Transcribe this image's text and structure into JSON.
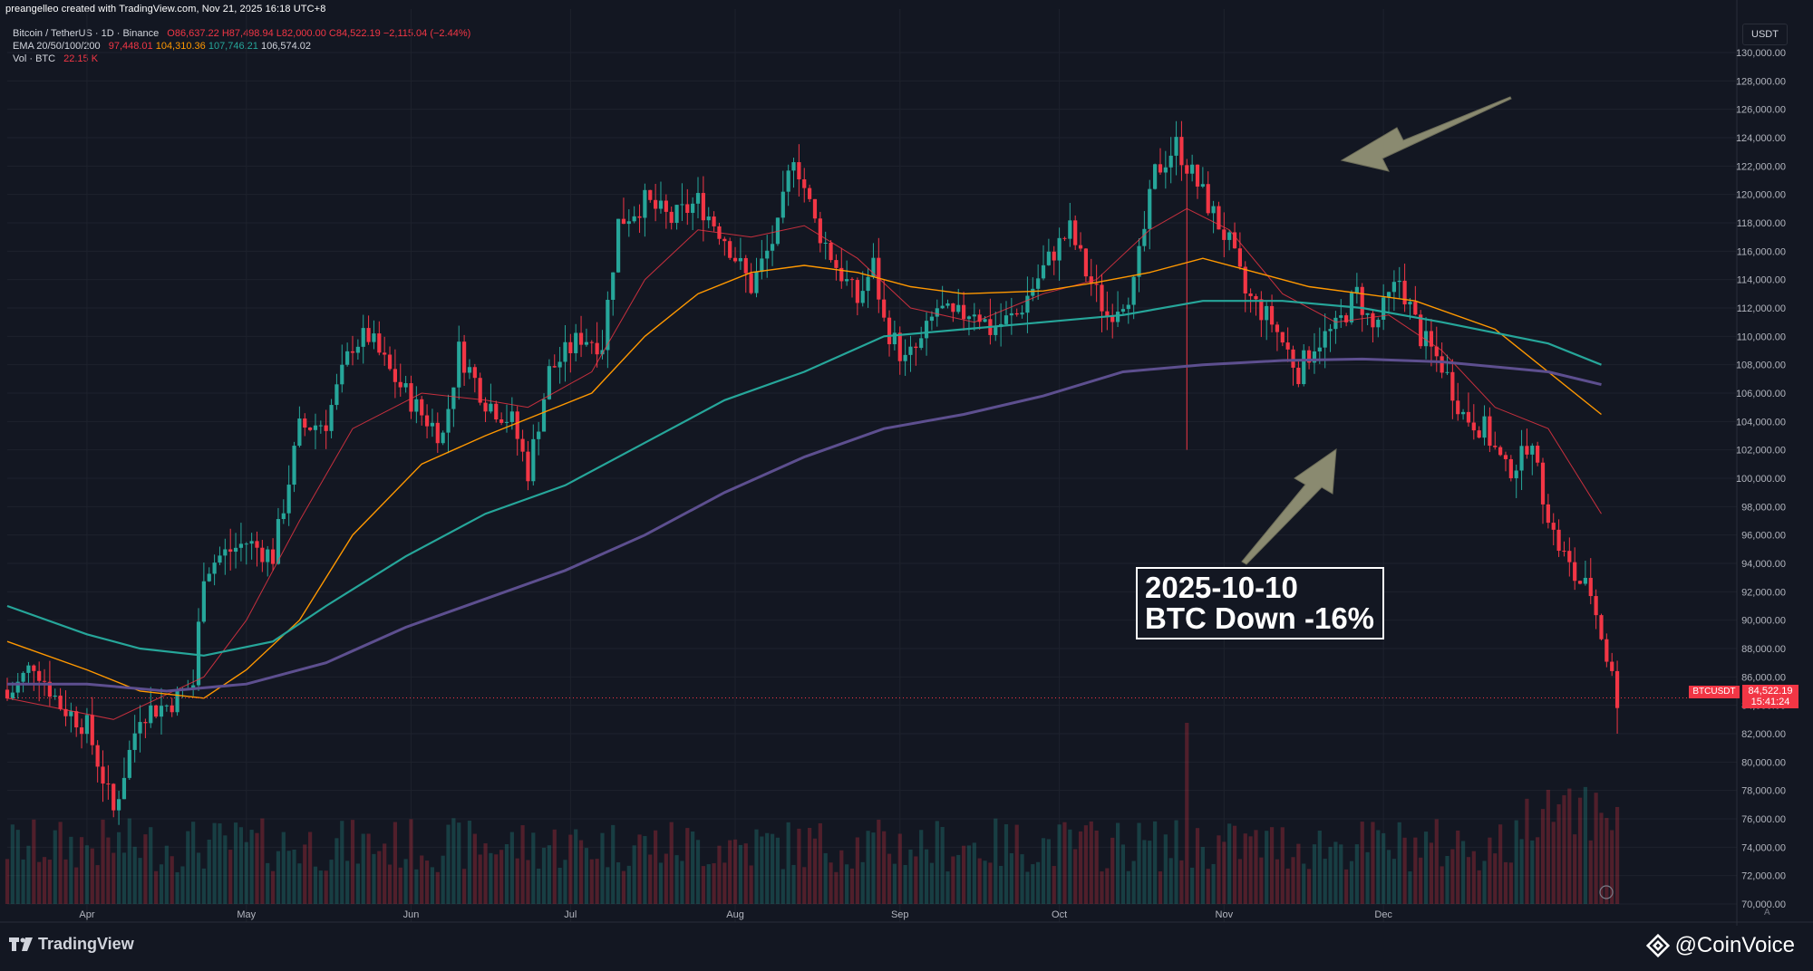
{
  "header": {
    "credit": "preangelleo created with TradingView.com, Nov 21, 2025 16:18 UTC+8",
    "symbol_label": "Bitcoin / TetherUS · 1D · Binance",
    "ohlc": {
      "o": "O86,637.22",
      "h": "H87,498.94",
      "l": "L82,000.00",
      "c": "C84,522.19",
      "chg": "−2,115.04 (−2.44%)"
    },
    "ema_label": "EMA 20/50/100/200",
    "ema_values": [
      "97,448.01",
      "104,310.36",
      "107,746.21",
      "106,574.02"
    ],
    "vol_label": "Vol · BTC",
    "vol_value": "22.15 K"
  },
  "currency_button": "USDT",
  "price_tag": {
    "symbol": "BTCUSDT",
    "price": "84,522.19",
    "countdown": "15:41:24"
  },
  "annotation": {
    "line1": "2025-10-10",
    "line2": "BTC Down -16%"
  },
  "footer": {
    "brand": "TradingView",
    "watermark": "@CoinVoice",
    "auto": "A"
  },
  "colors": {
    "up": "#26a69a",
    "down": "#f23645",
    "ema20": "#f23645",
    "ema50": "#ff9800",
    "ema100": "#26a69a",
    "ema200": "#5d4f8f",
    "arrow": "#8a8a70",
    "bg": "#131722"
  },
  "chart_data": {
    "type": "candlestick",
    "ylim": [
      69000,
      131000
    ],
    "yticks": [
      70000,
      72000,
      74000,
      76000,
      78000,
      80000,
      82000,
      84000,
      86000,
      88000,
      90000,
      92000,
      94000,
      96000,
      98000,
      100000,
      102000,
      104000,
      106000,
      108000,
      110000,
      112000,
      114000,
      116000,
      118000,
      120000,
      122000,
      124000,
      126000,
      128000,
      130000
    ],
    "xticks": [
      {
        "label": "Apr",
        "t": 15
      },
      {
        "label": "May",
        "t": 45
      },
      {
        "label": "Jun",
        "t": 76
      },
      {
        "label": "Jul",
        "t": 106
      },
      {
        "label": "Aug",
        "t": 137
      },
      {
        "label": "Sep",
        "t": 168
      },
      {
        "label": "Oct",
        "t": 198
      },
      {
        "label": "Nov",
        "t": 229
      },
      {
        "label": "Dec",
        "t": 259
      }
    ],
    "close_path": [
      [
        0,
        84500
      ],
      [
        5,
        87000
      ],
      [
        10,
        84000
      ],
      [
        15,
        82500
      ],
      [
        20,
        76500
      ],
      [
        25,
        83500
      ],
      [
        30,
        84000
      ],
      [
        35,
        85500
      ],
      [
        37,
        93500
      ],
      [
        40,
        94500
      ],
      [
        45,
        95500
      ],
      [
        50,
        94500
      ],
      [
        55,
        103500
      ],
      [
        60,
        104000
      ],
      [
        65,
        109500
      ],
      [
        68,
        110000
      ],
      [
        72,
        107500
      ],
      [
        78,
        104500
      ],
      [
        82,
        103000
      ],
      [
        85,
        109000
      ],
      [
        90,
        105500
      ],
      [
        95,
        104000
      ],
      [
        98,
        100500
      ],
      [
        102,
        107500
      ],
      [
        108,
        110000
      ],
      [
        112,
        109500
      ],
      [
        115,
        118000
      ],
      [
        120,
        119500
      ],
      [
        125,
        118200
      ],
      [
        130,
        119500
      ],
      [
        135,
        117000
      ],
      [
        140,
        113500
      ],
      [
        145,
        117500
      ],
      [
        148,
        123000
      ],
      [
        152,
        118000
      ],
      [
        156,
        115000
      ],
      [
        160,
        112500
      ],
      [
        163,
        115000
      ],
      [
        165,
        111000
      ],
      [
        169,
        108200
      ],
      [
        172,
        109500
      ],
      [
        175,
        112000
      ],
      [
        178,
        111200
      ],
      [
        182,
        112000
      ],
      [
        185,
        110500
      ],
      [
        190,
        111500
      ],
      [
        193,
        113500
      ],
      [
        197,
        116000
      ],
      [
        200,
        117500
      ],
      [
        203,
        114500
      ],
      [
        207,
        111500
      ],
      [
        212,
        113500
      ],
      [
        216,
        121500
      ],
      [
        220,
        123500
      ],
      [
        225,
        120000
      ],
      [
        230,
        116500
      ],
      [
        233,
        113000
      ],
      [
        238,
        111000
      ],
      [
        243,
        107500
      ],
      [
        246,
        109500
      ],
      [
        250,
        110500
      ],
      [
        254,
        113000
      ],
      [
        257,
        110500
      ],
      [
        262,
        114000
      ],
      [
        266,
        110000
      ],
      [
        270,
        108000
      ],
      [
        274,
        104500
      ],
      [
        278,
        103500
      ],
      [
        282,
        100500
      ],
      [
        287,
        102000
      ],
      [
        291,
        96000
      ],
      [
        295,
        93000
      ],
      [
        298,
        92000
      ],
      [
        301,
        87500
      ],
      [
        303,
        84500
      ]
    ],
    "ema_paths": [
      {
        "name": "EMA 20",
        "values": [
          [
            0,
            84500
          ],
          [
            20,
            83000
          ],
          [
            37,
            86000
          ],
          [
            45,
            90000
          ],
          [
            55,
            97000
          ],
          [
            65,
            103500
          ],
          [
            78,
            106000
          ],
          [
            90,
            105500
          ],
          [
            98,
            105000
          ],
          [
            110,
            107500
          ],
          [
            120,
            114000
          ],
          [
            130,
            117500
          ],
          [
            140,
            117000
          ],
          [
            150,
            117800
          ],
          [
            160,
            115500
          ],
          [
            170,
            112000
          ],
          [
            182,
            111000
          ],
          [
            195,
            113000
          ],
          [
            205,
            114000
          ],
          [
            215,
            117500
          ],
          [
            222,
            119000
          ],
          [
            230,
            117500
          ],
          [
            240,
            113000
          ],
          [
            250,
            111000
          ],
          [
            260,
            111500
          ],
          [
            270,
            109000
          ],
          [
            280,
            105000
          ],
          [
            290,
            103500
          ],
          [
            300,
            97500
          ]
        ]
      },
      {
        "name": "EMA 50",
        "values": [
          [
            0,
            88500
          ],
          [
            15,
            86500
          ],
          [
            25,
            85000
          ],
          [
            37,
            84500
          ],
          [
            45,
            86500
          ],
          [
            55,
            90000
          ],
          [
            65,
            96000
          ],
          [
            78,
            101000
          ],
          [
            90,
            103000
          ],
          [
            100,
            104500
          ],
          [
            110,
            106000
          ],
          [
            120,
            110000
          ],
          [
            130,
            113000
          ],
          [
            140,
            114500
          ],
          [
            150,
            115000
          ],
          [
            160,
            114500
          ],
          [
            170,
            113500
          ],
          [
            180,
            113000
          ],
          [
            195,
            113200
          ],
          [
            205,
            113800
          ],
          [
            215,
            114500
          ],
          [
            225,
            115500
          ],
          [
            235,
            114500
          ],
          [
            245,
            113500
          ],
          [
            255,
            113000
          ],
          [
            265,
            112500
          ],
          [
            280,
            110500
          ],
          [
            300,
            104500
          ]
        ]
      },
      {
        "name": "EMA 100",
        "values": [
          [
            0,
            91000
          ],
          [
            15,
            89000
          ],
          [
            25,
            88000
          ],
          [
            37,
            87500
          ],
          [
            50,
            88500
          ],
          [
            60,
            91000
          ],
          [
            75,
            94500
          ],
          [
            90,
            97500
          ],
          [
            105,
            99500
          ],
          [
            120,
            102500
          ],
          [
            135,
            105500
          ],
          [
            150,
            107500
          ],
          [
            165,
            110000
          ],
          [
            180,
            110500
          ],
          [
            195,
            111000
          ],
          [
            210,
            111500
          ],
          [
            225,
            112500
          ],
          [
            240,
            112500
          ],
          [
            255,
            112000
          ],
          [
            270,
            111000
          ],
          [
            290,
            109500
          ],
          [
            300,
            108000
          ]
        ]
      },
      {
        "name": "EMA 200",
        "values": [
          [
            0,
            85500
          ],
          [
            15,
            85500
          ],
          [
            30,
            85000
          ],
          [
            45,
            85500
          ],
          [
            60,
            87000
          ],
          [
            75,
            89500
          ],
          [
            90,
            91500
          ],
          [
            105,
            93500
          ],
          [
            120,
            96000
          ],
          [
            135,
            99000
          ],
          [
            150,
            101500
          ],
          [
            165,
            103500
          ],
          [
            180,
            104500
          ],
          [
            195,
            105800
          ],
          [
            210,
            107500
          ],
          [
            225,
            108000
          ],
          [
            240,
            108300
          ],
          [
            255,
            108400
          ],
          [
            270,
            108200
          ],
          [
            290,
            107500
          ],
          [
            300,
            106600
          ]
        ]
      }
    ],
    "spike_candle": {
      "t": 222,
      "high": 122500,
      "low": 102000
    },
    "last_low": 82000,
    "last_price": 84522.19
  }
}
